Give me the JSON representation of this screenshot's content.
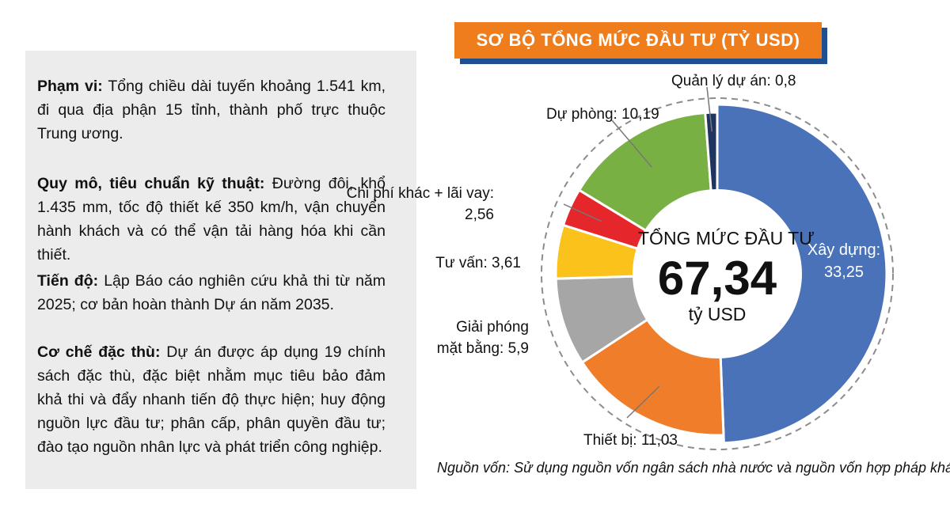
{
  "title": "SƠ BỘ TỔNG MỨC ĐẦU TƯ (TỶ USD)",
  "info": {
    "scope_label": "Phạm vi:",
    "scope_text": "Tổng chiều dài tuyến khoảng 1.541 km, đi qua địa phận 15 tỉnh, thành phố trực thuộc Trung ương.",
    "scale_label": "Quy mô, tiêu chuẩn kỹ thuật:",
    "scale_text": "Đường đôi, khổ 1.435 mm, tốc độ thiết kế 350 km/h, vận chuyển hành khách và có thể vận tải hàng hóa khi cần thiết.",
    "time_label": "Tiến độ:",
    "time_text": "Lập Báo cáo nghiên cứu khả thi từ năm 2025; cơ bản hoàn thành Dự án năm 2035.",
    "special_label": "Cơ chế đặc thù:",
    "special_text": "Dự án được áp dụng 19 chính sách đặc thù, đặc biệt nhằm mục tiêu bảo đảm khả thi và đẩy nhanh tiến độ thực hiện; huy động nguồn lực đầu tư; phân cấp, phân quyền đầu tư; đào tạo nguồn nhân lực và phát triển công nghiệp."
  },
  "chart_data": {
    "type": "pie",
    "title": "SƠ BỘ TỔNG MỨC ĐẦU TƯ (TỶ USD)",
    "center": {
      "title": "TỔNG MỨC ĐẦU TƯ",
      "value": "67,34",
      "unit": "tỷ USD"
    },
    "slices": [
      {
        "name": "Xây dựng",
        "value": 33.25,
        "color": "#4a72b8",
        "label_lines": [
          "Xây dựng:",
          "33,25"
        ]
      },
      {
        "name": "Thiết bị",
        "value": 11.03,
        "color": "#f07d2a",
        "label_lines": [
          "Thiết bị: 11,03"
        ]
      },
      {
        "name": "Giải phóng mặt bằng",
        "value": 5.9,
        "color": "#a6a6a6",
        "label_lines": [
          "Giải phóng",
          "mặt bằng: 5,9"
        ]
      },
      {
        "name": "Tư vấn",
        "value": 3.61,
        "color": "#fbc21b",
        "label_lines": [
          "Tư vấn: 3,61"
        ]
      },
      {
        "name": "Chi phí khác + lãi vay",
        "value": 2.56,
        "color": "#e5262a",
        "label_lines": [
          "Chi phí khác + lãi vay:",
          "2,56"
        ]
      },
      {
        "name": "Dự phòng",
        "value": 10.19,
        "color": "#79b043",
        "label_lines": [
          "Dự phòng: 10,19"
        ]
      },
      {
        "name": "Quản lý dự án",
        "value": 0.8,
        "color": "#1f3560",
        "label_lines": [
          "Quản lý dự án: 0,8"
        ]
      }
    ],
    "source_note": "Nguồn vốn: Sử dụng nguồn vốn ngân sách nhà nước và nguồn vốn hợp pháp khác"
  }
}
